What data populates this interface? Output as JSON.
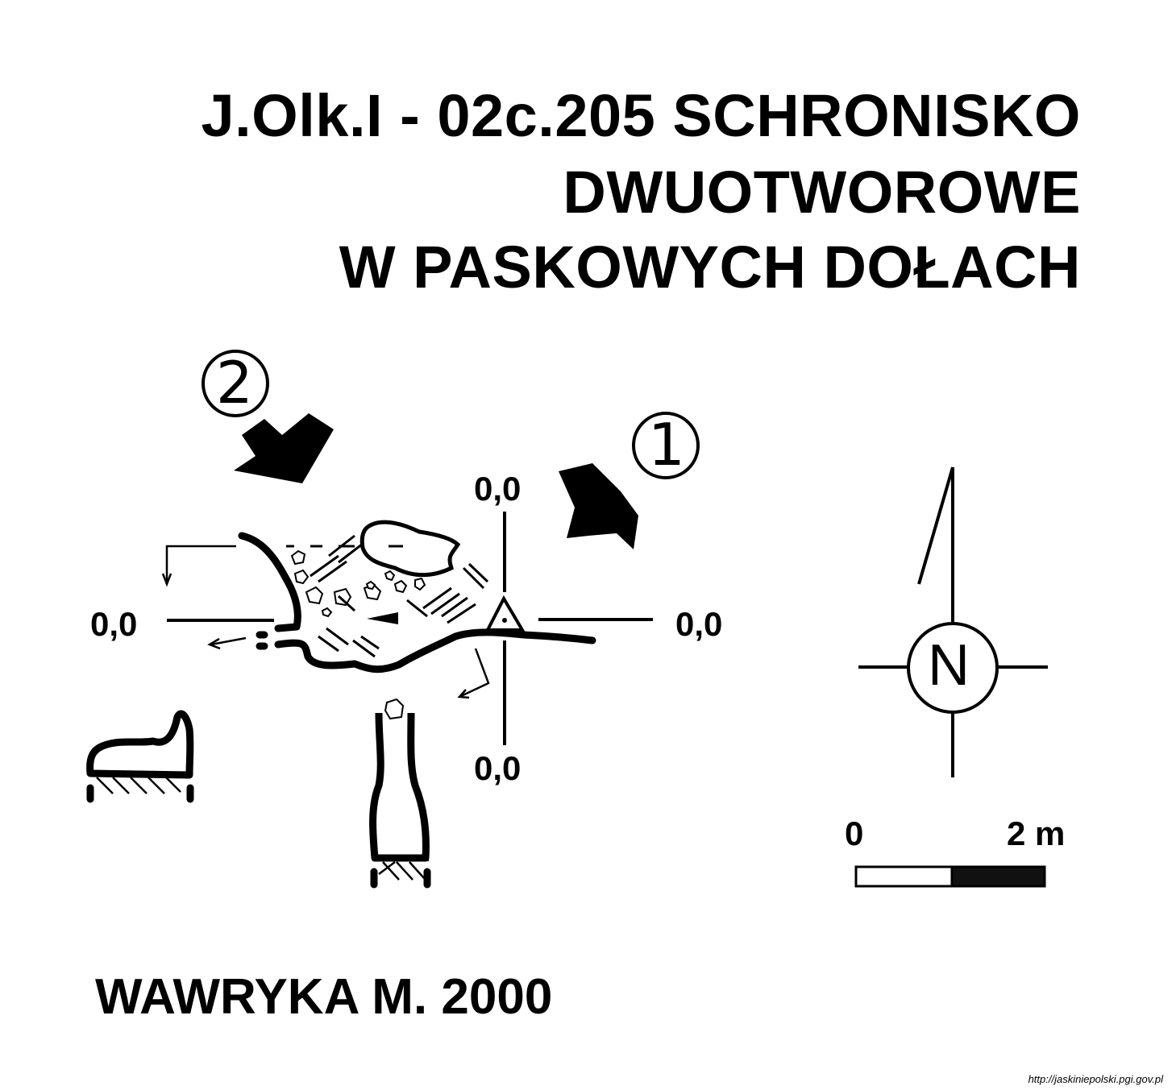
{
  "title": {
    "line1": "J.Olk.I - 02c.205  SCHRONISKO",
    "line2": "DWUOTWOROWE",
    "line3": "W PASKOWYCH DOŁACH"
  },
  "entrances": [
    {
      "number": "2"
    },
    {
      "number": "1"
    }
  ],
  "levels": {
    "top": "0,0",
    "left": "0,0",
    "right": "0,0",
    "bottom": "0,0"
  },
  "north": {
    "letter": "N"
  },
  "scale": {
    "start": "0",
    "end": "2 m"
  },
  "author": "WAWRYKA M. 2000",
  "source": "http://jaskiniepolski.pgi.gov.pl"
}
